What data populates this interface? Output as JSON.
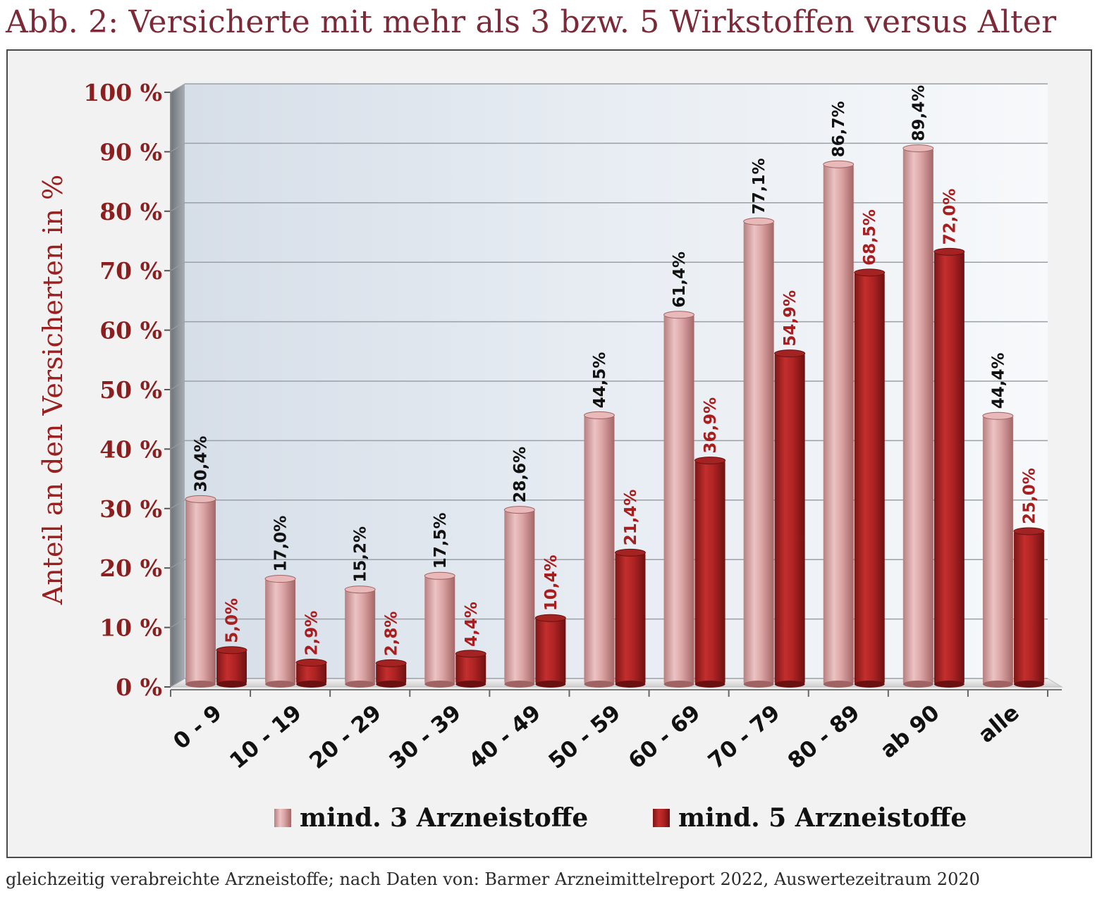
{
  "title": "Abb. 2: Versicherte mit mehr als 3 bzw. 5 Wirkstoffen versus Alter",
  "footnote": "gleichzeitig verabreichte Arzneistoffe; nach Daten von: Barmer Arzneimittelreport 2022, Auswertezeitraum 2020",
  "chart_data": {
    "type": "bar",
    "title": "Abb. 2: Versicherte mit mehr als 3 bzw. 5 Wirkstoffen versus Alter",
    "xlabel": "",
    "ylabel": "Anteil an den Versicherten in %",
    "ylim": [
      0,
      100
    ],
    "yticks": [
      0,
      10,
      20,
      30,
      40,
      50,
      60,
      70,
      80,
      90,
      100
    ],
    "ytick_labels": [
      "0 %",
      "10 %",
      "20 %",
      "30 %",
      "40 %",
      "50 %",
      "60 %",
      "70 %",
      "80 %",
      "90 %",
      "100 %"
    ],
    "categories": [
      "0 - 9",
      "10 - 19",
      "20 - 29",
      "30 - 39",
      "40 - 49",
      "50 - 59",
      "60 - 69",
      "70 - 79",
      "80 - 89",
      "ab 90",
      "alle"
    ],
    "series": [
      {
        "name": "mind. 3 Arzneistoffe",
        "color": "#d9a0a0",
        "values": [
          30.4,
          17.0,
          15.2,
          17.5,
          28.6,
          44.5,
          61.4,
          77.1,
          86.7,
          89.4,
          44.4
        ],
        "labels": [
          "30,4%",
          "17,0%",
          "15,2%",
          "17,5%",
          "28,6%",
          "44,5%",
          "61,4%",
          "77,1%",
          "86,7%",
          "89,4%",
          "44,4%"
        ]
      },
      {
        "name": "mind. 5 Arzneistoffe",
        "color": "#b02424",
        "values": [
          5.0,
          2.9,
          2.8,
          4.4,
          10.4,
          21.4,
          36.9,
          54.9,
          68.5,
          72.0,
          25.0
        ],
        "labels": [
          "5,0%",
          "2,9%",
          "2,8%",
          "4,4%",
          "10,4%",
          "21,4%",
          "36,9%",
          "54,9%",
          "68,5%",
          "72,0%",
          "25,0%"
        ]
      }
    ],
    "grid": true,
    "legend_position": "bottom"
  }
}
